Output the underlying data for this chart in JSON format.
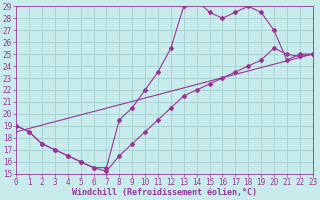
{
  "xlabel": "Windchill (Refroidissement éolien,°C)",
  "bg_color": "#c8ecec",
  "grid_color": "#aad4d4",
  "line_color": "#993399",
  "xlim": [
    0,
    23
  ],
  "ylim": [
    15,
    29
  ],
  "xticks": [
    0,
    1,
    2,
    3,
    4,
    5,
    6,
    7,
    8,
    9,
    10,
    11,
    12,
    13,
    14,
    15,
    16,
    17,
    18,
    19,
    20,
    21,
    22,
    23
  ],
  "yticks": [
    15,
    16,
    17,
    18,
    19,
    20,
    21,
    22,
    23,
    24,
    25,
    26,
    27,
    28,
    29
  ],
  "series1_x": [
    0,
    1,
    2,
    3,
    4,
    5,
    6,
    7,
    8,
    9,
    10,
    11,
    12,
    13,
    14,
    15,
    16,
    17,
    18,
    19,
    20,
    21,
    22,
    23
  ],
  "series1_y": [
    19,
    18.5,
    17.5,
    17.0,
    16.5,
    16.0,
    15.5,
    15.2,
    16.5,
    17.5,
    18.5,
    19.5,
    20.5,
    21.5,
    22.0,
    22.5,
    23.0,
    23.5,
    24.0,
    24.5,
    25.5,
    25.0,
    24.8,
    25.0
  ],
  "series2_x": [
    0,
    1,
    2,
    3,
    4,
    5,
    6,
    7,
    8,
    9,
    10,
    11,
    12,
    13,
    14,
    15,
    16,
    17,
    18,
    19,
    20,
    21,
    22,
    23
  ],
  "series2_y": [
    19,
    18.5,
    17.5,
    17.0,
    16.5,
    16.0,
    15.5,
    15.5,
    19.5,
    20.5,
    22.0,
    23.5,
    25.5,
    29.0,
    29.5,
    28.5,
    28.0,
    28.5,
    29.0,
    28.5,
    27.0,
    24.5,
    25.0,
    25.0
  ],
  "series3_x": [
    0,
    23
  ],
  "series3_y": [
    18.5,
    25.0
  ],
  "tick_fontsize": 5.5,
  "xlabel_fontsize": 6.0
}
